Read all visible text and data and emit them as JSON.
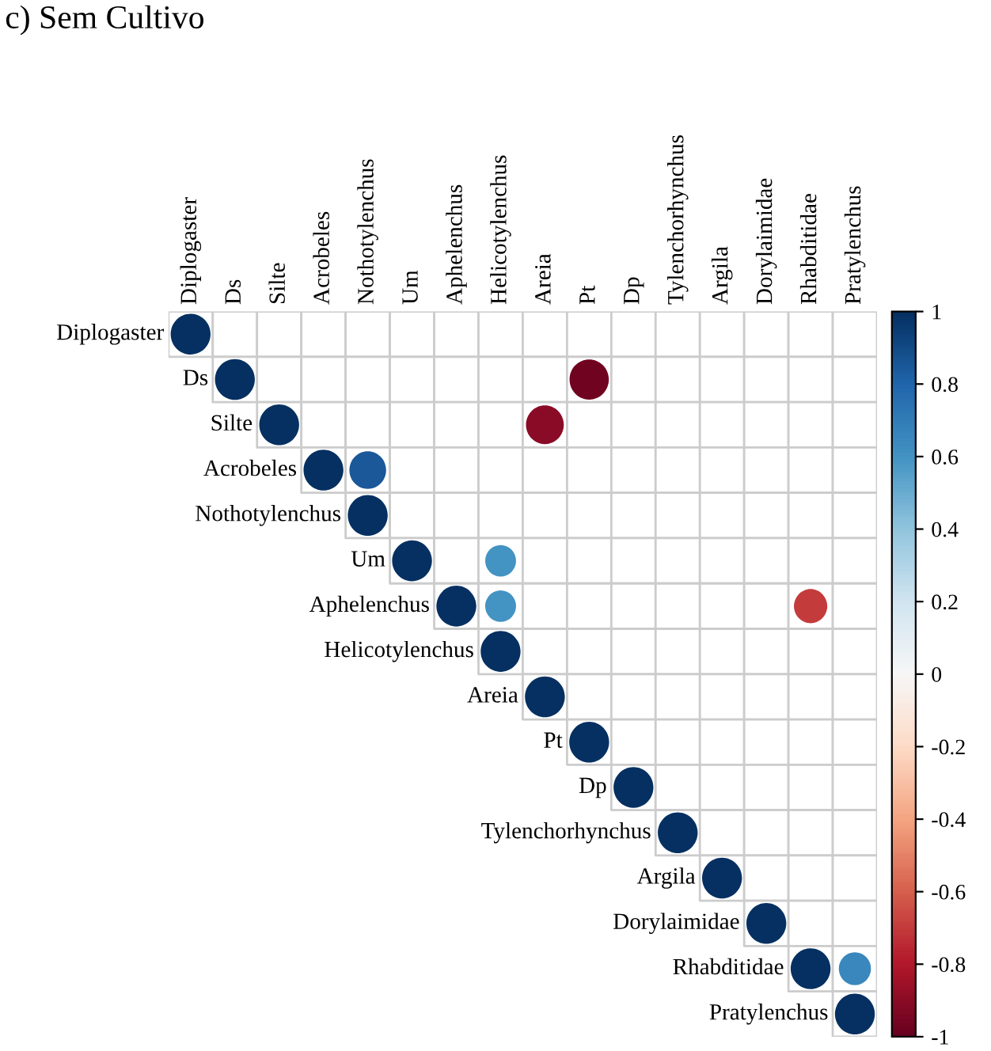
{
  "chart_data": {
    "type": "heatmap",
    "title": "c) Sem Cultivo",
    "categories": [
      "Diplogaster",
      "Ds",
      "Silte",
      "Acrobeles",
      "Nothotylenchus",
      "Um",
      "Aphelenchus",
      "Helicotylenchus",
      "Areia",
      "Pt",
      "Dp",
      "Tylenchorhynchus",
      "Argila",
      "Dorylaimidae",
      "Rhabditidae",
      "Pratylenchus"
    ],
    "y_categories": [
      "Diplogaster",
      "Ds",
      "Silte",
      "Acrobeles",
      "Nothotylenchus",
      "Um",
      "Aphelenchus",
      "Helicotylenchus",
      "Areia",
      "Pt",
      "Dp",
      "Tylenchorhynchus",
      "Argila",
      "Dorylaimidae",
      "Rhabditidae",
      "Pratylenchus"
    ],
    "cells": [
      [
        1,
        null,
        null,
        null,
        null,
        null,
        null,
        null,
        null,
        null,
        null,
        null,
        null,
        null,
        null,
        null
      ],
      [
        null,
        1,
        null,
        null,
        null,
        null,
        null,
        null,
        null,
        -0.97,
        null,
        null,
        null,
        null,
        null,
        null
      ],
      [
        null,
        null,
        1,
        null,
        null,
        null,
        null,
        null,
        -0.9,
        null,
        null,
        null,
        null,
        null,
        null,
        null
      ],
      [
        null,
        null,
        null,
        1,
        0.85,
        null,
        null,
        null,
        null,
        null,
        null,
        null,
        null,
        null,
        null,
        null
      ],
      [
        null,
        null,
        null,
        null,
        1,
        null,
        null,
        null,
        null,
        null,
        null,
        null,
        null,
        null,
        null,
        null
      ],
      [
        null,
        null,
        null,
        null,
        null,
        1,
        null,
        0.6,
        null,
        null,
        null,
        null,
        null,
        null,
        null,
        null
      ],
      [
        null,
        null,
        null,
        null,
        null,
        null,
        1,
        0.6,
        null,
        null,
        null,
        null,
        null,
        null,
        -0.7,
        null
      ],
      [
        null,
        null,
        null,
        null,
        null,
        null,
        null,
        1,
        null,
        null,
        null,
        null,
        null,
        null,
        null,
        null
      ],
      [
        null,
        null,
        null,
        null,
        null,
        null,
        null,
        null,
        1,
        null,
        null,
        null,
        null,
        null,
        null,
        null
      ],
      [
        null,
        null,
        null,
        null,
        null,
        null,
        null,
        null,
        null,
        1,
        null,
        null,
        null,
        null,
        null,
        null
      ],
      [
        null,
        null,
        null,
        null,
        null,
        null,
        null,
        null,
        null,
        null,
        1,
        null,
        null,
        null,
        null,
        null
      ],
      [
        null,
        null,
        null,
        null,
        null,
        null,
        null,
        null,
        null,
        null,
        null,
        1,
        null,
        null,
        null,
        null
      ],
      [
        null,
        null,
        null,
        null,
        null,
        null,
        null,
        null,
        null,
        null,
        null,
        null,
        1,
        null,
        null,
        null
      ],
      [
        null,
        null,
        null,
        null,
        null,
        null,
        null,
        null,
        null,
        null,
        null,
        null,
        null,
        1,
        null,
        null
      ],
      [
        null,
        null,
        null,
        null,
        null,
        null,
        null,
        null,
        null,
        null,
        null,
        null,
        null,
        null,
        1,
        0.65
      ],
      [
        null,
        null,
        null,
        null,
        null,
        null,
        null,
        null,
        null,
        null,
        null,
        null,
        null,
        null,
        null,
        1
      ]
    ],
    "clim": [
      -1,
      1
    ],
    "cticks": [
      1,
      0.8,
      0.6,
      0.4,
      0.2,
      0,
      -0.2,
      -0.4,
      -0.6,
      -0.8,
      -1
    ]
  }
}
